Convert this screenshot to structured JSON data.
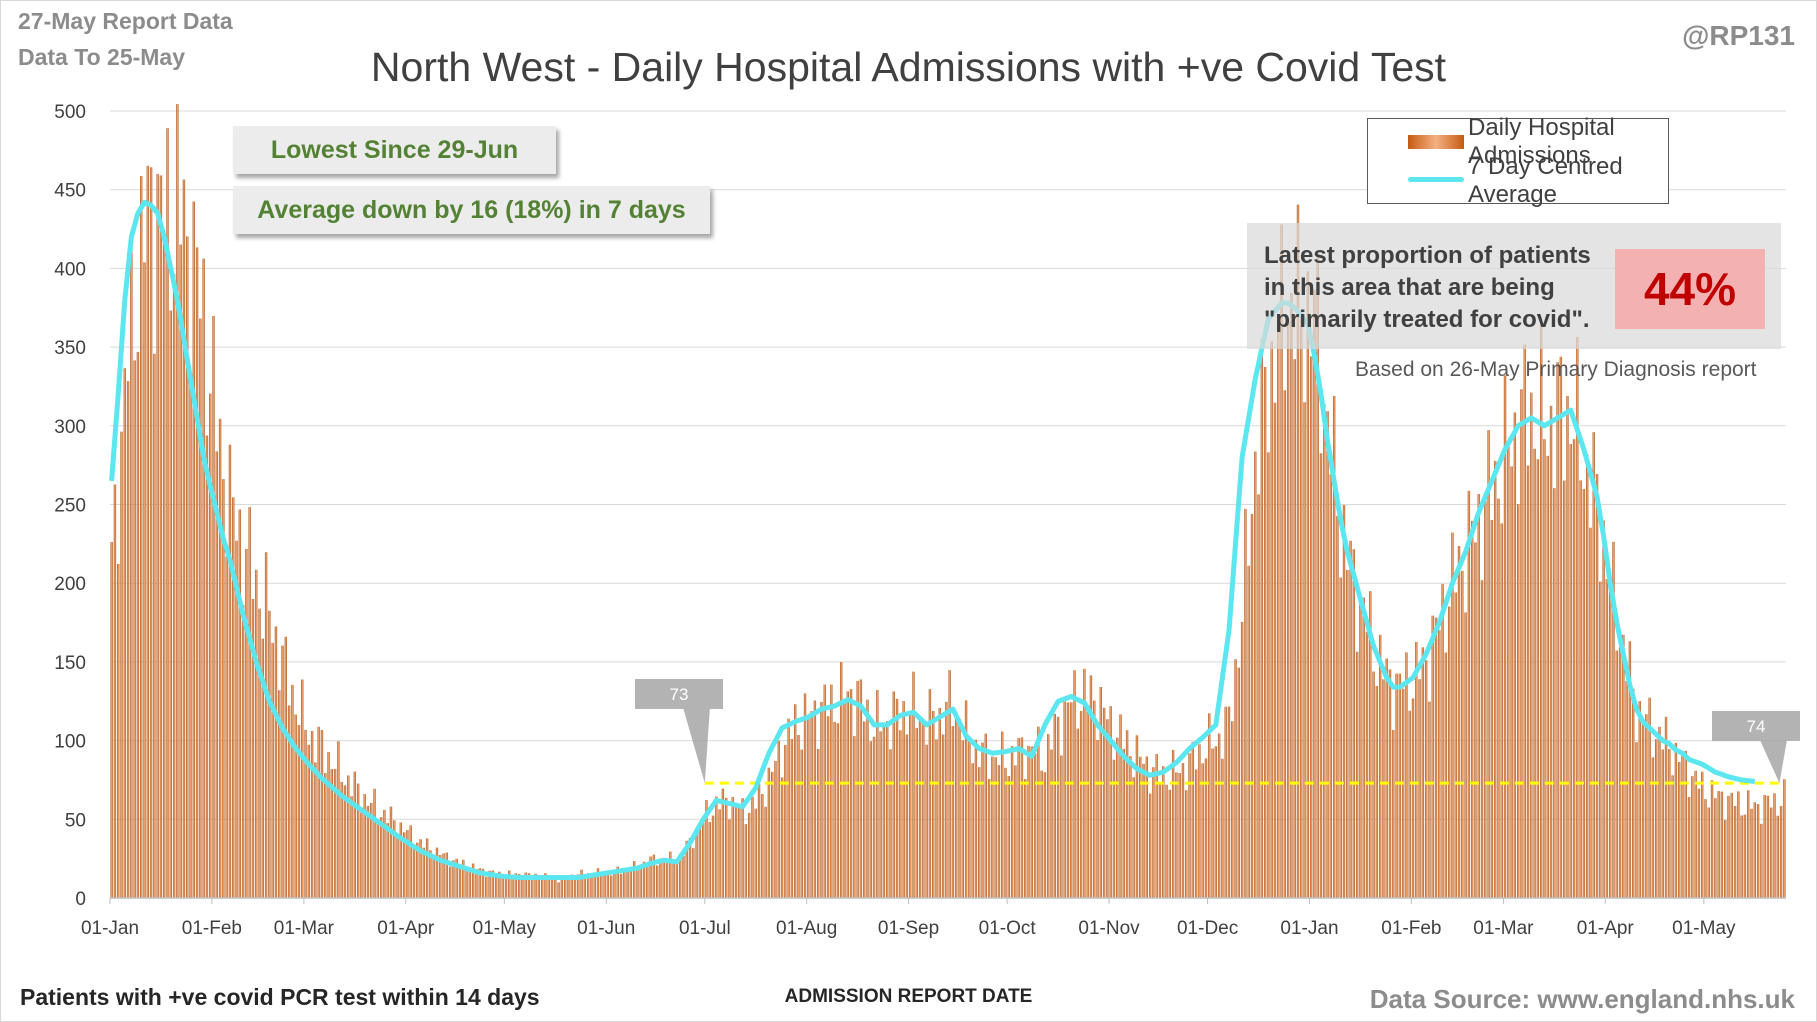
{
  "header": {
    "report_date": "27-May Report Data",
    "data_to": "Data To 25-May",
    "handle": "@RP131"
  },
  "callouts": {
    "lowest": "Lowest Since 29-Jun",
    "average": "Average down by 16 (18%) in 7 days"
  },
  "proportion": {
    "text": "Latest proportion of patients in this area that are being \"primarily treated for covid\".",
    "value": "44%",
    "basis": "Based on 26-May Primary Diagnosis report"
  },
  "footer": {
    "left_note": "Patients with +ve covid PCR test within 14 days",
    "source": "Data Source: www.england.nhs.uk"
  },
  "colors": {
    "bars": "#c55a11",
    "average_line": "#5ce6f0",
    "reference_line": "#ffff00",
    "callout_text": "#548235",
    "percent_text": "#c00000"
  },
  "chart_data": {
    "type": "bar",
    "title": "North West - Daily Hospital Admissions with +ve Covid Test",
    "xlabel": "ADMISSION REPORT DATE",
    "ylabel": "",
    "ylim": [
      0,
      500
    ],
    "yticks": [
      0,
      50,
      100,
      150,
      200,
      250,
      300,
      350,
      400,
      450,
      500
    ],
    "x_range": [
      "01-Jan",
      "25-May"
    ],
    "x_tick_labels": [
      "01-Jan",
      "01-Feb",
      "01-Mar",
      "01-Apr",
      "01-May",
      "01-Jun",
      "01-Jul",
      "01-Aug",
      "01-Sep",
      "01-Oct",
      "01-Nov",
      "01-Dec",
      "01-Jan",
      "01-Feb",
      "01-Mar",
      "01-Apr",
      "01-May"
    ],
    "x_tick_days": [
      0,
      31,
      59,
      90,
      120,
      151,
      181,
      212,
      243,
      273,
      304,
      334,
      365,
      396,
      424,
      455,
      485
    ],
    "grid": true,
    "legend_position": "top-right",
    "series": [
      {
        "name": "Daily Hospital Admissions",
        "type": "bar",
        "anchor_days": [
          0,
          4,
          8,
          12,
          16,
          20,
          24,
          28,
          32,
          36,
          40,
          44,
          48,
          52,
          56,
          60,
          64,
          70,
          76,
          82,
          88,
          94,
          100,
          106,
          112,
          118,
          124,
          130,
          136,
          142,
          148,
          154,
          160,
          164,
          168,
          172,
          176,
          180,
          184,
          188,
          192,
          196,
          200,
          204,
          208,
          212,
          216,
          220,
          224,
          228,
          232,
          236,
          240,
          244,
          248,
          252,
          256,
          260,
          264,
          268,
          272,
          276,
          280,
          284,
          288,
          292,
          296,
          300,
          304,
          308,
          312,
          316,
          320,
          324,
          328,
          332,
          336,
          340,
          344,
          348,
          352,
          356,
          358,
          360,
          362,
          364,
          366,
          368,
          370,
          372,
          374,
          376,
          378,
          380,
          382,
          384,
          386,
          388,
          390,
          392,
          396,
          400,
          404,
          408,
          412,
          416,
          420,
          424,
          428,
          432,
          436,
          440,
          444,
          448,
          452,
          454,
          456,
          458,
          460,
          462,
          464,
          466,
          468,
          470,
          472,
          474,
          476,
          478,
          480,
          484,
          488,
          492,
          496,
          500,
          504,
          508,
          509
        ],
        "anchor_values": [
          210,
          320,
          400,
          440,
          430,
          440,
          410,
          370,
          300,
          250,
          225,
          200,
          180,
          150,
          125,
          105,
          95,
          80,
          65,
          55,
          45,
          35,
          28,
          22,
          18,
          15,
          15,
          14,
          12,
          15,
          16,
          17,
          20,
          24,
          25,
          24,
          35,
          50,
          60,
          62,
          55,
          60,
          75,
          95,
          110,
          115,
          120,
          125,
          130,
          125,
          110,
          112,
          118,
          120,
          112,
          115,
          125,
          105,
          92,
          90,
          88,
          92,
          95,
          90,
          110,
          125,
          130,
          125,
          110,
          100,
          90,
          82,
          78,
          80,
          85,
          95,
          100,
          110,
          180,
          280,
          330,
          360,
          380,
          375,
          370,
          375,
          365,
          340,
          300,
          270,
          240,
          220,
          200,
          190,
          175,
          160,
          150,
          140,
          135,
          135,
          140,
          150,
          175,
          200,
          220,
          240,
          260,
          280,
          300,
          310,
          300,
          305,
          310,
          280,
          250,
          230,
          200,
          180,
          160,
          140,
          120,
          115,
          110,
          105,
          100,
          98,
          90,
          88,
          80,
          70,
          65,
          62,
          60,
          58,
          60,
          62,
          64,
          65
        ]
      },
      {
        "name": "7 Day Centred Average",
        "type": "line",
        "anchor_days": [
          0,
          2,
          4,
          6,
          8,
          10,
          12,
          14,
          16,
          18,
          20,
          22,
          24,
          26,
          28,
          30,
          32,
          34,
          36,
          40,
          44,
          48,
          52,
          56,
          60,
          64,
          70,
          76,
          82,
          88,
          94,
          100,
          106,
          112,
          118,
          124,
          130,
          136,
          142,
          148,
          154,
          160,
          164,
          168,
          172,
          176,
          180,
          184,
          188,
          192,
          196,
          200,
          204,
          208,
          212,
          216,
          220,
          224,
          228,
          232,
          236,
          240,
          244,
          248,
          252,
          256,
          260,
          264,
          268,
          272,
          276,
          280,
          284,
          288,
          292,
          296,
          300,
          304,
          308,
          312,
          316,
          320,
          324,
          328,
          332,
          336,
          340,
          344,
          348,
          352,
          356,
          358,
          360,
          362,
          364,
          366,
          368,
          370,
          372,
          374,
          376,
          378,
          380,
          382,
          384,
          386,
          388,
          390,
          392,
          396,
          400,
          404,
          408,
          412,
          416,
          420,
          424,
          428,
          432,
          436,
          440,
          444,
          448,
          452,
          454,
          456,
          458,
          460,
          462,
          464,
          466,
          468,
          470,
          472,
          474,
          476,
          478,
          480,
          484,
          488,
          492,
          496,
          500,
          504,
          508
        ],
        "anchor_values": [
          265,
          320,
          380,
          420,
          435,
          442,
          440,
          435,
          420,
          400,
          380,
          355,
          330,
          305,
          280,
          262,
          245,
          228,
          215,
          180,
          150,
          125,
          108,
          95,
          85,
          76,
          65,
          56,
          47,
          38,
          30,
          24,
          20,
          16,
          14,
          13,
          13,
          13,
          13,
          15,
          17,
          19,
          22,
          24,
          23,
          35,
          50,
          62,
          60,
          58,
          70,
          92,
          108,
          112,
          115,
          120,
          122,
          126,
          122,
          110,
          110,
          116,
          118,
          110,
          115,
          120,
          103,
          95,
          92,
          93,
          95,
          90,
          110,
          125,
          128,
          124,
          110,
          100,
          90,
          82,
          78,
          80,
          86,
          95,
          102,
          110,
          170,
          280,
          330,
          368,
          378,
          378,
          375,
          370,
          365,
          345,
          320,
          290,
          265,
          240,
          220,
          205,
          190,
          175,
          160,
          150,
          140,
          134,
          134,
          140,
          155,
          175,
          200,
          220,
          245,
          265,
          285,
          300,
          305,
          300,
          305,
          310,
          285,
          255,
          230,
          200,
          175,
          155,
          135,
          120,
          112,
          108,
          104,
          100,
          98,
          94,
          92,
          88,
          85,
          80,
          77,
          75,
          74
        ]
      }
    ],
    "reference_line": {
      "value": 73,
      "from_label": "73",
      "to_label": "74"
    },
    "annotations": [
      "73",
      "74"
    ]
  }
}
